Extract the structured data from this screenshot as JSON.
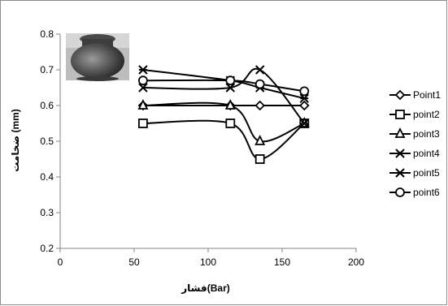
{
  "chart_data": {
    "type": "line",
    "xlabel": "فشار(Bar)",
    "ylabel": "ضخامت (mm)",
    "xlim": [
      0,
      200
    ],
    "ylim": [
      0.2,
      0.8
    ],
    "x_ticks": [
      "0",
      "50",
      "100",
      "150",
      "200"
    ],
    "y_ticks": [
      "0.2",
      "0.3",
      "0.4",
      "0.5",
      "0.6",
      "0.7",
      "0.8"
    ],
    "grid": false,
    "legend_position": "right",
    "inset_image": "pottery-jar-photo",
    "series": [
      {
        "name": "Point1",
        "marker": "diamond",
        "x": [
          56,
          115,
          135,
          165
        ],
        "y": [
          0.6,
          0.6,
          0.6,
          0.6
        ]
      },
      {
        "name": "point2",
        "marker": "square",
        "x": [
          56,
          115,
          135,
          165
        ],
        "y": [
          0.55,
          0.55,
          0.45,
          0.55
        ]
      },
      {
        "name": "point3",
        "marker": "triangle",
        "x": [
          56,
          115,
          135,
          165
        ],
        "y": [
          0.6,
          0.6,
          0.5,
          0.55
        ]
      },
      {
        "name": "point4",
        "marker": "x",
        "x": [
          56,
          115,
          135,
          165
        ],
        "y": [
          0.65,
          0.65,
          0.7,
          0.55
        ]
      },
      {
        "name": "point5",
        "marker": "star",
        "x": [
          56,
          115,
          135,
          165
        ],
        "y": [
          0.7,
          0.67,
          0.65,
          0.62
        ]
      },
      {
        "name": "point6",
        "marker": "circle",
        "x": [
          56,
          115,
          135,
          165
        ],
        "y": [
          0.67,
          0.67,
          0.66,
          0.64
        ]
      }
    ]
  }
}
